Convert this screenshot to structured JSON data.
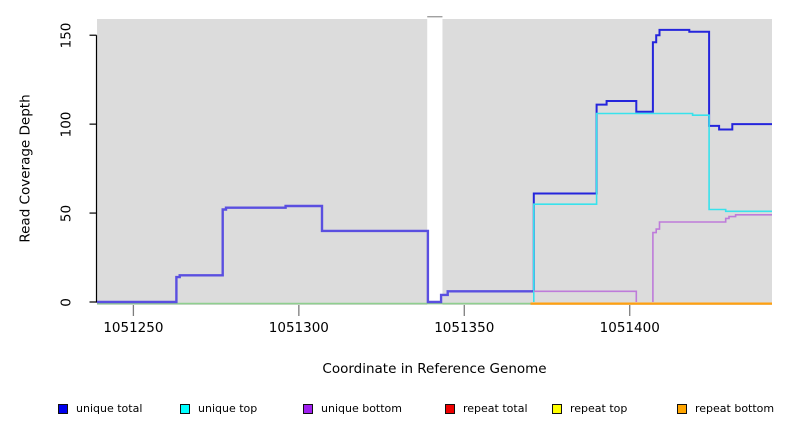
{
  "chart_data": {
    "type": "line",
    "subtype": "step-after coverage plot",
    "title": "",
    "xlabel": "Coordinate in Reference Genome",
    "ylabel": "Read Coverage Depth",
    "xlim": [
      1051239,
      1051443
    ],
    "ylim": [
      0,
      159
    ],
    "x_ticks": [
      1051250,
      1051300,
      1051350,
      1051400
    ],
    "y_ticks": [
      0,
      50,
      100,
      150
    ],
    "grid": false,
    "plot_bg": "#dcdcdc",
    "coverage_gap_x": [
      1051338.8,
      1051343.4
    ],
    "series": [
      {
        "name": "unique total",
        "color": "#0000ee",
        "points": [
          [
            1051239,
            0
          ],
          [
            1051263,
            14
          ],
          [
            1051264,
            15
          ],
          [
            1051277,
            52
          ],
          [
            1051278,
            53
          ],
          [
            1051296,
            54
          ],
          [
            1051307,
            40
          ],
          [
            1051339,
            0
          ],
          [
            1051343,
            4
          ],
          [
            1051345,
            6
          ],
          [
            1051371,
            61
          ],
          [
            1051390,
            111
          ],
          [
            1051393,
            113
          ],
          [
            1051402,
            107
          ],
          [
            1051407,
            146
          ],
          [
            1051408,
            150
          ],
          [
            1051409,
            153
          ],
          [
            1051418,
            152
          ],
          [
            1051424,
            99
          ],
          [
            1051427,
            97
          ],
          [
            1051431,
            100
          ],
          [
            1051443,
            100
          ]
        ]
      },
      {
        "name": "unique top",
        "color": "#00ffff",
        "points": [
          [
            1051239,
            0
          ],
          [
            1051371,
            55
          ],
          [
            1051390,
            106
          ],
          [
            1051419,
            105
          ],
          [
            1051424,
            52
          ],
          [
            1051429,
            51
          ],
          [
            1051443,
            51
          ]
        ]
      },
      {
        "name": "unique bottom",
        "color": "#a020f0",
        "points": [
          [
            1051239,
            0
          ],
          [
            1051263,
            14
          ],
          [
            1051264,
            15
          ],
          [
            1051277,
            52
          ],
          [
            1051278,
            53
          ],
          [
            1051296,
            54
          ],
          [
            1051307,
            40
          ],
          [
            1051339,
            0
          ],
          [
            1051343,
            4
          ],
          [
            1051345,
            6
          ],
          [
            1051402,
            0
          ],
          [
            1051407,
            39
          ],
          [
            1051408,
            41
          ],
          [
            1051409,
            45
          ],
          [
            1051429,
            47
          ],
          [
            1051430,
            48
          ],
          [
            1051432,
            49
          ],
          [
            1051443,
            49
          ]
        ]
      },
      {
        "name": "repeat total",
        "color": "#ee0000",
        "points": [
          [
            1051239,
            0
          ],
          [
            1051443,
            0
          ]
        ]
      },
      {
        "name": "repeat top",
        "color": "#ffff00",
        "points": [
          [
            1051239,
            0
          ],
          [
            1051443,
            0
          ]
        ]
      },
      {
        "name": "repeat bottom",
        "color": "#ffa500",
        "points": [
          [
            1051370,
            0
          ],
          [
            1051443,
            0
          ]
        ]
      }
    ],
    "draw": [
      {
        "name": "zero-line-blend-unique-top-repeat-top",
        "color": "#8fcf8f",
        "width": 1.6,
        "y_offset": 1.6,
        "points": [
          [
            1051239,
            0
          ],
          [
            1051370,
            0
          ]
        ]
      },
      {
        "name": "unique-total-overlapped-by-unique-bottom",
        "color": "#5a4fe0",
        "width": 2.4,
        "points": [
          [
            1051239,
            0
          ],
          [
            1051263,
            14
          ],
          [
            1051264,
            15
          ],
          [
            1051277,
            52
          ],
          [
            1051278,
            53
          ],
          [
            1051296,
            54
          ],
          [
            1051307,
            40
          ],
          [
            1051339,
            0
          ],
          [
            1051343,
            4
          ],
          [
            1051345,
            6
          ],
          [
            1051371,
            6
          ]
        ]
      },
      {
        "name": "unique-total",
        "color": "#2525dc",
        "width": 2,
        "points": [
          [
            1051371,
            6
          ],
          [
            1051371,
            61
          ],
          [
            1051390,
            111
          ],
          [
            1051393,
            113
          ],
          [
            1051402,
            107
          ],
          [
            1051407,
            146
          ],
          [
            1051408,
            150
          ],
          [
            1051409,
            153
          ],
          [
            1051418,
            152
          ],
          [
            1051424,
            99
          ],
          [
            1051427,
            97
          ],
          [
            1051431,
            100
          ],
          [
            1051443,
            100
          ]
        ]
      },
      {
        "name": "unique-top",
        "color": "#38e2ec",
        "width": 1.6,
        "points": [
          [
            1051371,
            0
          ],
          [
            1051371,
            55
          ],
          [
            1051390,
            106
          ],
          [
            1051419,
            105
          ],
          [
            1051424,
            52
          ],
          [
            1051429,
            51
          ],
          [
            1051443,
            51
          ]
        ]
      },
      {
        "name": "unique-bottom-fall",
        "color": "#be7bda",
        "width": 1.6,
        "points": [
          [
            1051371,
            6
          ],
          [
            1051402,
            6
          ],
          [
            1051402,
            0
          ]
        ]
      },
      {
        "name": "unique-bottom-rise",
        "color": "#be7bda",
        "width": 1.6,
        "points": [
          [
            1051407,
            0
          ],
          [
            1051407,
            39
          ],
          [
            1051408,
            41
          ],
          [
            1051409,
            45
          ],
          [
            1051429,
            47
          ],
          [
            1051430,
            48
          ],
          [
            1051432,
            49
          ],
          [
            1051443,
            49
          ]
        ]
      },
      {
        "name": "repeat-bottom",
        "color": "#ffa010",
        "width": 2.2,
        "y_offset": 1.6,
        "points": [
          [
            1051370,
            0
          ],
          [
            1051443,
            0
          ]
        ]
      }
    ],
    "legend_position": "bottom"
  },
  "legend_items": [
    {
      "label": "unique total",
      "color": "#0000ee"
    },
    {
      "label": "unique top",
      "color": "#00ffff"
    },
    {
      "label": "unique bottom",
      "color": "#a020f0"
    },
    {
      "label": "repeat total",
      "color": "#ee0000"
    },
    {
      "label": "repeat top",
      "color": "#ffff00"
    },
    {
      "label": "repeat bottom",
      "color": "#ffa500"
    }
  ],
  "colors": {
    "figure_bg": "#ffffff",
    "panel_bg": "#dcdcdc",
    "axis": "#000000",
    "x_tick": "#7d7d7d",
    "gap_cap": "#a0a0a0"
  }
}
